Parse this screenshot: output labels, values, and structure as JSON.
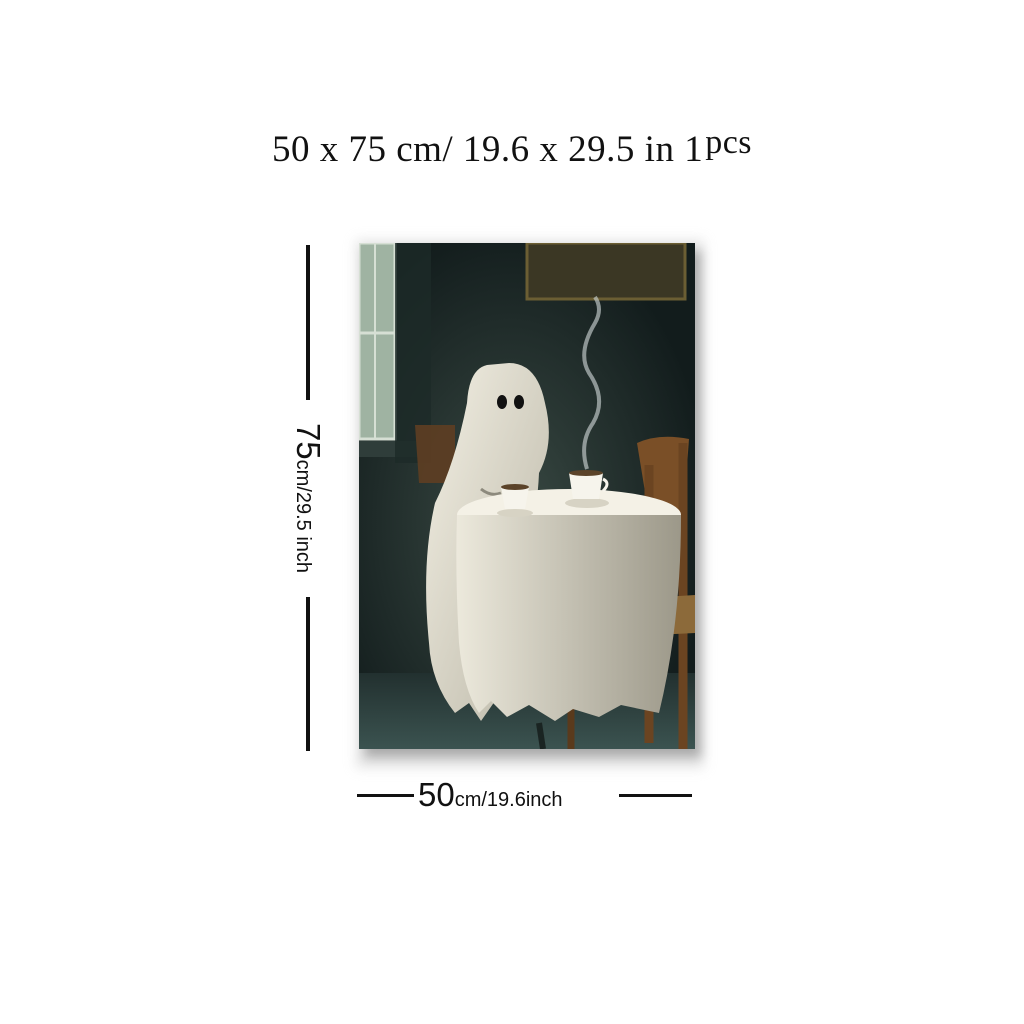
{
  "heading": {
    "size_text": "50 x 75 cm/ 19.6  x  29.5 in",
    "count_number": "1",
    "count_unit": "pcs"
  },
  "height_dimension": {
    "value": "75",
    "unit_text": "cm/29.5 inch"
  },
  "width_dimension": {
    "value": "50",
    "unit_text": "cm/19.6inch"
  },
  "artwork": {
    "subject": "ghost sitting at table with coffee cups",
    "colors": {
      "wall": "#1b2a28",
      "window": "#7f9a86",
      "sheet": "#e8e4d6",
      "table": "#dcd8c9",
      "chair": "#8a5a2b",
      "floor": "#2b3f3e"
    }
  }
}
